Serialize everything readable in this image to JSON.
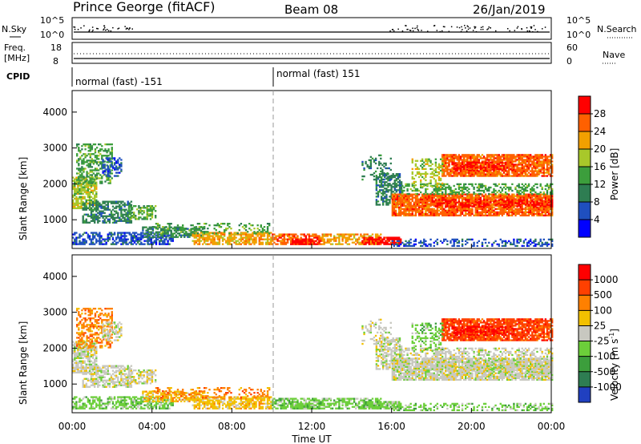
{
  "header": {
    "station": "Prince George (fitACF)",
    "beam": "Beam 08",
    "date": "26/Jan/2019"
  },
  "top_panels": {
    "nsky_label": "N.Sky",
    "nsky_ticks": [
      "10^5",
      "10^0"
    ],
    "nsearch_label": "N.Search",
    "nsearch_ticks": [
      "10^5",
      "10^0"
    ],
    "freq_label": "Freq.",
    "freq_unit": "[MHz]",
    "freq_ticks": [
      "18",
      "8"
    ],
    "nave_label": "Nave",
    "nave_ticks": [
      "60",
      "0"
    ],
    "cpid_label": "CPID",
    "cpid_segments": [
      {
        "start_time": "00:00",
        "label": "normal (fast) -151"
      },
      {
        "start_time": "10:00",
        "label": "normal (fast) 151"
      }
    ]
  },
  "chart_data": [
    {
      "type": "heatmap",
      "name_label": "Power",
      "ylabel": "Slant Range [km]",
      "colorbar_label": "Power [dB]",
      "ylim": [
        200,
        4600
      ],
      "yticks": [
        "1000",
        "2000",
        "3000",
        "4000"
      ],
      "colorbar_ticks": [
        "28",
        "24",
        "20",
        "16",
        "12",
        "8",
        "4"
      ],
      "colors": [
        "#0000ff",
        "#1f4fbf",
        "#2e7d52",
        "#3c9e3c",
        "#a8c82a",
        "#f2a000",
        "#ff6000",
        "#ff0000"
      ]
    },
    {
      "type": "heatmap",
      "name_label": "Velocity",
      "ylabel": "Slant Range [km]",
      "colorbar_label": "Velocity [m s",
      "colorbar_unit_sup": "-1",
      "ylim": [
        200,
        4600
      ],
      "yticks": [
        "1000",
        "2000",
        "3000",
        "4000"
      ],
      "colorbar_ticks": [
        "1000",
        "500",
        "100",
        "25",
        "-25",
        "-100",
        "-500",
        "-1000"
      ],
      "colors": [
        "#2040c0",
        "#2e7d52",
        "#3c9e3c",
        "#6ccf3a",
        "#c8c8c0",
        "#f2c000",
        "#ff8000",
        "#ff4000",
        "#ff0000"
      ]
    }
  ],
  "x_axis": {
    "label": "Time UT",
    "ticks": [
      "00:00",
      "04:00",
      "08:00",
      "12:00",
      "16:00",
      "20:00",
      "00:00"
    ]
  }
}
